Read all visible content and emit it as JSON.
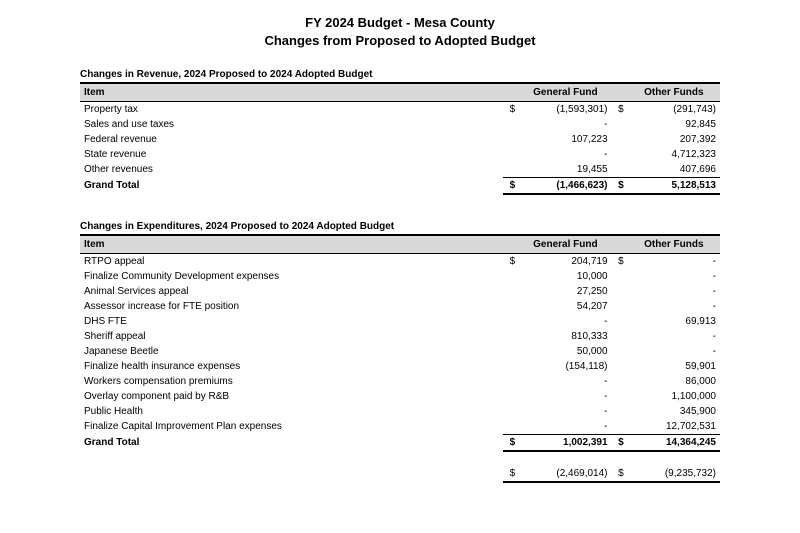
{
  "title_line1": "FY 2024 Budget - Mesa County",
  "title_line2": "Changes from Proposed to Adopted Budget",
  "col_item": "Item",
  "col_gf": "General Fund",
  "col_of": "Other Funds",
  "dollar": "$",
  "revenue": {
    "heading": "Changes in Revenue, 2024 Proposed to 2024 Adopted Budget",
    "rows": [
      {
        "item": "Property tax",
        "gf": "(1,593,301)",
        "of": "(291,743)",
        "gf_sym": "$",
        "of_sym": "$"
      },
      {
        "item": "Sales and use taxes",
        "gf": "-",
        "of": "92,845"
      },
      {
        "item": "Federal revenue",
        "gf": "107,223",
        "of": "207,392"
      },
      {
        "item": "State revenue",
        "gf": "-",
        "of": "4,712,323"
      },
      {
        "item": "Other revenues",
        "gf": "19,455",
        "of": "407,696"
      }
    ],
    "total_label": "Grand Total",
    "total_gf": "(1,466,623)",
    "total_of": "5,128,513"
  },
  "expenditures": {
    "heading": "Changes in Expenditures, 2024 Proposed to 2024 Adopted Budget",
    "rows": [
      {
        "item": "RTPO appeal",
        "gf": "204,719",
        "of": "-",
        "gf_sym": "$",
        "of_sym": "$"
      },
      {
        "item": "Finalize Community Development expenses",
        "gf": "10,000",
        "of": "-"
      },
      {
        "item": "Animal Services appeal",
        "gf": "27,250",
        "of": "-"
      },
      {
        "item": "Assessor increase for FTE position",
        "gf": "54,207",
        "of": "-"
      },
      {
        "item": "DHS FTE",
        "gf": "-",
        "of": "69,913"
      },
      {
        "item": "Sheriff appeal",
        "gf": "810,333",
        "of": "-"
      },
      {
        "item": "Japanese Beetle",
        "gf": "50,000",
        "of": "-"
      },
      {
        "item": "Finalize health  insurance expenses",
        "gf": "(154,118)",
        "of": "59,901"
      },
      {
        "item": "Workers compensation premiums",
        "gf": "-",
        "of": "86,000"
      },
      {
        "item": "Overlay component paid by R&B",
        "gf": "-",
        "of": "1,100,000"
      },
      {
        "item": "Public Health",
        "gf": "-",
        "of": "345,900"
      },
      {
        "item": "Finalize Capital Improvement Plan expenses",
        "gf": "-",
        "of": "12,702,531"
      }
    ],
    "total_label": "Grand Total",
    "total_gf": "1,002,391",
    "total_of": "14,364,245"
  },
  "net_gf": "(2,469,014)",
  "net_of": "(9,235,732)"
}
